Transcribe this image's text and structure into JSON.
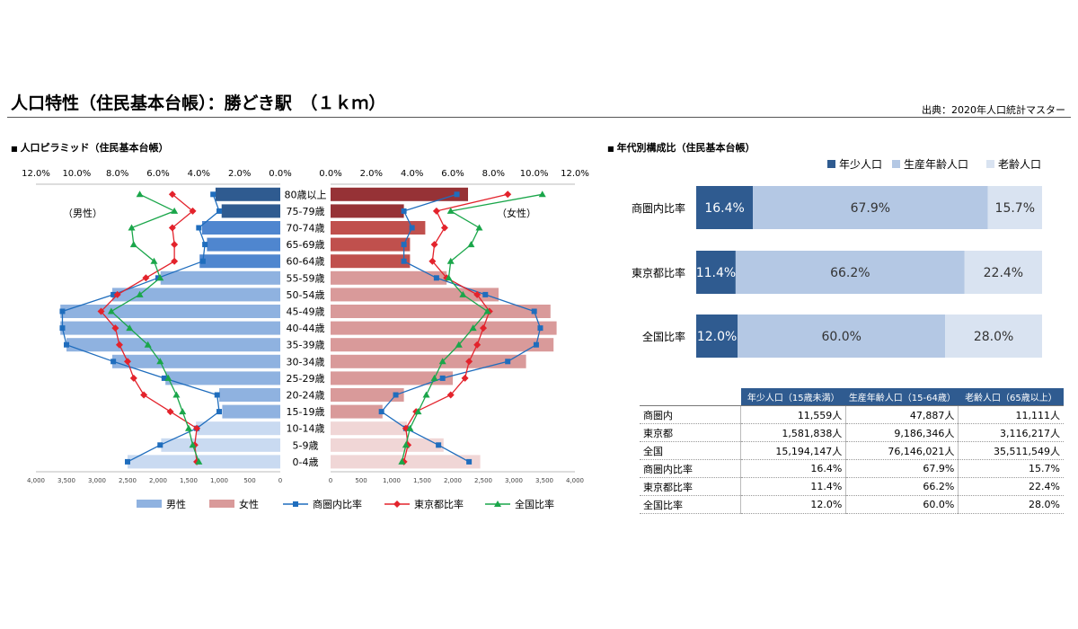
{
  "header": {
    "title": "人口特性（住民基本台帳）：勝どき駅　（１ｋｍ）",
    "source": "出典：2020年人口統計マスター"
  },
  "sections": {
    "pyramid": "人口ピラミッド（住民基本台帳）",
    "composition": "年代別構成比（住民基本台帳）"
  },
  "chart_data": [
    {
      "type": "bar",
      "title": "人口ピラミッド（住民基本台帳）",
      "categories": [
        "80歳以上",
        "75-79歳",
        "70-74歳",
        "65-69歳",
        "60-64歳",
        "55-59歳",
        "50-54歳",
        "45-49歳",
        "40-44歳",
        "35-39歳",
        "30-34歳",
        "25-29歳",
        "20-24歳",
        "15-19歳",
        "10-14歳",
        "5-9歳",
        "0-4歳"
      ],
      "male_label": "（男性）",
      "female_label": "（女性）",
      "count_axis": {
        "max": 4000,
        "ticks": [
          "4,000",
          "3,500",
          "3,000",
          "2,500",
          "2,000",
          "1,500",
          "1,000",
          "500",
          "0"
        ],
        "ticks_right": [
          "0",
          "500",
          "1,000",
          "1,500",
          "2,000",
          "2,500",
          "3,000",
          "3,500",
          "4,000"
        ]
      },
      "ratio_axis": {
        "max": 12,
        "ticks": [
          "12.0%",
          "10.0%",
          "8.0%",
          "6.0%",
          "4.0%",
          "2.0%",
          "0.0%"
        ],
        "ticks_right": [
          "0.0%",
          "2.0%",
          "4.0%",
          "6.0%",
          "8.0%",
          "10.0%",
          "12.0%"
        ]
      },
      "series": [
        {
          "name": "男性",
          "side": "male",
          "kind": "bar",
          "values": [
            1060,
            960,
            1280,
            1200,
            1320,
            1960,
            2750,
            3600,
            3600,
            3500,
            2750,
            1880,
            1000,
            950,
            1380,
            1950,
            2500
          ]
        },
        {
          "name": "女性",
          "side": "female",
          "kind": "bar",
          "values": [
            2250,
            1200,
            1550,
            1300,
            1300,
            1900,
            2750,
            3600,
            3700,
            3650,
            3200,
            2000,
            1200,
            850,
            1250,
            1850,
            2450
          ]
        },
        {
          "name": "商圏内比率",
          "side": "male",
          "kind": "line",
          "marker": "square",
          "color": "#1f6dbd",
          "values": [
            3.3,
            3.0,
            4.0,
            3.7,
            3.8,
            6.0,
            8.2,
            10.7,
            10.7,
            10.5,
            8.2,
            5.7,
            3.1,
            3.0,
            4.1,
            5.9,
            7.5
          ]
        },
        {
          "name": "商圏内比率",
          "side": "female",
          "kind": "line",
          "marker": "square",
          "color": "#1f6dbd",
          "values": [
            6.2,
            3.6,
            4.0,
            3.6,
            3.6,
            5.2,
            7.6,
            10.0,
            10.3,
            10.1,
            8.7,
            5.5,
            3.2,
            2.5,
            3.7,
            5.3,
            6.8
          ]
        },
        {
          "name": "東京都比率",
          "side": "male",
          "kind": "line",
          "marker": "diamond",
          "color": "#e3232c",
          "values": [
            5.3,
            4.3,
            5.3,
            5.2,
            5.2,
            6.6,
            8.0,
            8.8,
            8.1,
            7.9,
            7.5,
            7.2,
            6.7,
            5.4,
            4.1,
            4.2,
            4.1
          ]
        },
        {
          "name": "東京都比率",
          "side": "female",
          "kind": "line",
          "marker": "diamond",
          "color": "#e3232c",
          "values": [
            8.7,
            5.2,
            5.6,
            5.1,
            5.0,
            5.7,
            7.2,
            7.8,
            7.5,
            7.2,
            6.8,
            6.6,
            5.9,
            4.2,
            3.7,
            3.8,
            3.6
          ]
        },
        {
          "name": "全国比率",
          "side": "male",
          "kind": "line",
          "marker": "triangle",
          "color": "#1aa64a",
          "values": [
            6.9,
            5.2,
            7.3,
            7.2,
            6.2,
            5.9,
            6.9,
            8.3,
            7.4,
            6.5,
            5.9,
            5.5,
            5.1,
            4.8,
            4.5,
            4.3,
            4.0
          ]
        },
        {
          "name": "全国比率",
          "side": "female",
          "kind": "line",
          "marker": "triangle",
          "color": "#1aa64a",
          "values": [
            10.4,
            5.9,
            7.3,
            6.9,
            5.9,
            5.8,
            6.5,
            7.7,
            7.0,
            6.3,
            5.5,
            5.1,
            4.7,
            4.3,
            3.9,
            3.7,
            3.5
          ]
        }
      ],
      "legend": [
        "男性",
        "女性",
        "商圏内比率",
        "東京都比率",
        "全国比率"
      ]
    },
    {
      "type": "bar",
      "title": "年代別構成比（住民基本台帳）",
      "stacked": true,
      "percent": true,
      "categories": [
        "商圏内比率",
        "東京都比率",
        "全国比率"
      ],
      "series": [
        {
          "name": "年少人口",
          "values": [
            16.4,
            11.4,
            12.0
          ],
          "labels": [
            "16.4%",
            "11.4%",
            "12.0%"
          ]
        },
        {
          "name": "生産年齢人口",
          "values": [
            67.9,
            66.2,
            60.0
          ],
          "labels": [
            "67.9%",
            "66.2%",
            "60.0%"
          ]
        },
        {
          "name": "老齢人口",
          "values": [
            15.7,
            22.4,
            28.0
          ],
          "labels": [
            "15.7%",
            "22.4%",
            "28.0%"
          ]
        }
      ],
      "legend_placement": "top-right"
    }
  ],
  "colors": {
    "male": "#8fb2e0",
    "male_dark": "#2f5b90",
    "male_mid": "#4f86cf",
    "male_light": "#c9daf1",
    "female": "#d99a9a",
    "female_dark": "#963236",
    "female_mid": "#c0504d",
    "female_light": "#f0d6d6",
    "young": "#2f5b90",
    "working": "#b4c8e4",
    "elderly": "#d9e3f1",
    "trade": "#1f6dbd",
    "tokyo": "#e3232c",
    "national": "#1aa64a"
  },
  "table": {
    "headers": [
      "年少人口（15歳未満）",
      "生産年齢人口（15-64歳）",
      "老齢人口（65歳以上）"
    ],
    "rows": [
      {
        "label": "商圏内",
        "cells": [
          "11,559人",
          "47,887人",
          "11,111人"
        ]
      },
      {
        "label": "東京都",
        "cells": [
          "1,581,838人",
          "9,186,346人",
          "3,116,217人"
        ]
      },
      {
        "label": "全国",
        "cells": [
          "15,194,147人",
          "76,146,021人",
          "35,511,549人"
        ]
      },
      {
        "label": "商圏内比率",
        "cells": [
          "16.4%",
          "67.9%",
          "15.7%"
        ]
      },
      {
        "label": "東京都比率",
        "cells": [
          "11.4%",
          "66.2%",
          "22.4%"
        ]
      },
      {
        "label": "全国比率",
        "cells": [
          "12.0%",
          "60.0%",
          "28.0%"
        ]
      }
    ]
  }
}
